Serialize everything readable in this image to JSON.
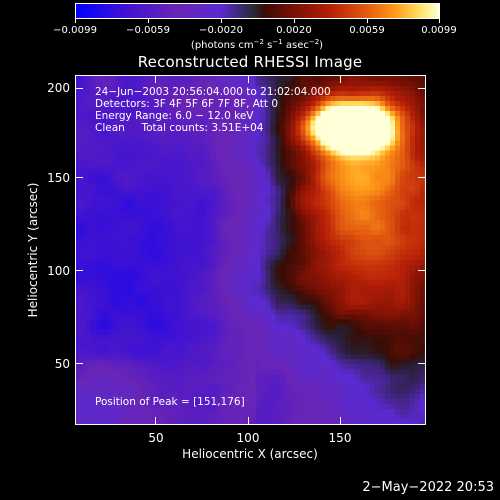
{
  "colorbar": {
    "tick_labels": [
      "−0.0099",
      "−0.0059",
      "−0.0020",
      "0.0020",
      "0.0059",
      "0.0099"
    ],
    "units_prefix": "(photons cm",
    "units_exp1": "−2",
    "units_mid1": " s",
    "units_exp2": "−1",
    "units_mid2": " asec",
    "units_exp3": "−2",
    "units_suffix": ")"
  },
  "title": "Reconstructed RHESSI Image",
  "annotations": {
    "line1": "24−Jun−2003 20:56:04.000 to 21:02:04.000",
    "line2": "Detectors: 3F 4F 5F 6F 7F 8F, Att 0",
    "line3": "Energy Range: 6.0 − 12.0 keV",
    "line4": "Clean     Total counts: 3.51E+04",
    "peak": "Position of Peak = [151,176]"
  },
  "axes": {
    "xlabel": "Heliocentric X (arcsec)",
    "ylabel": "Heliocentric Y (arcsec)",
    "xticks": [
      "50",
      "100",
      "150"
    ],
    "yticks": [
      "50",
      "100",
      "150",
      "200"
    ]
  },
  "timestamp": "2−May−2022 20:53",
  "colors": {
    "negative": "#6a25b5",
    "positive_low": "#7a1005",
    "positive_high": "#ffffd8"
  }
}
